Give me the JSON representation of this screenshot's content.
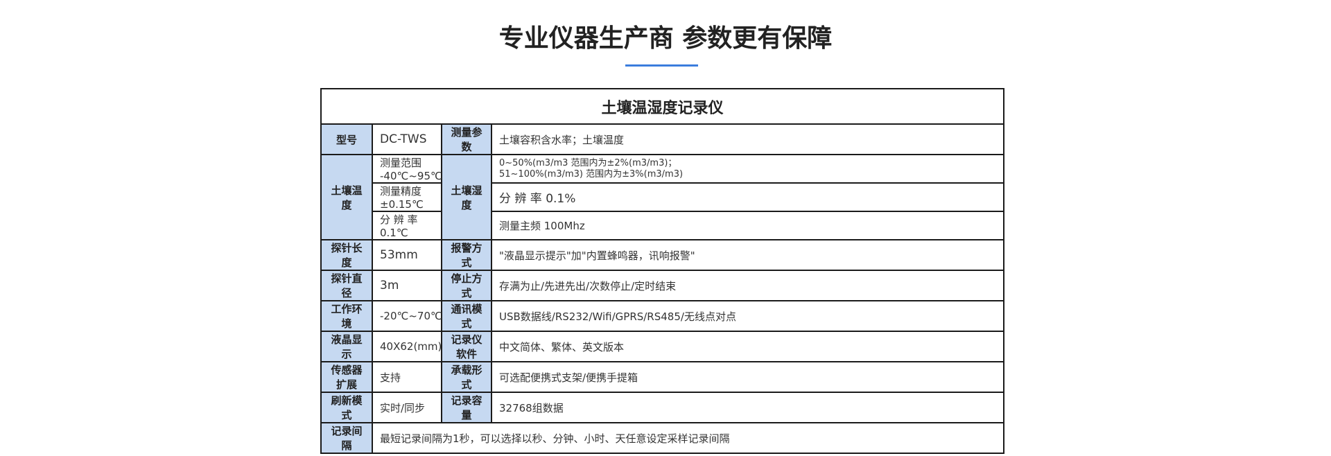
{
  "heading": "专业仪器生产商 参数更有保障",
  "accent_color": "#3b7ddd",
  "table": {
    "caption": "土壤温湿度记录仪",
    "model_label": "型号",
    "model": "DC-TWS",
    "measure_label": "测量参数",
    "measure": "土壤容积含水率；土壤温度",
    "soil_temp_label": "土壤温度",
    "soil_temp": [
      "测量范围 -40℃~95℃",
      "测量精度 ±0.15℃",
      "分 辨 率 0.1℃"
    ],
    "soil_hum_label": "土壤湿度",
    "soil_hum_line1": "0~50%(m3/m3 范围内为±2%(m3/m3)；",
    "soil_hum_line2": "51~100%(m3/m3) 范围内为±3%(m3/m3)",
    "soil_hum_res": "分 辨 率  0.1%",
    "soil_hum_freq": "测量主频 100Mhz",
    "rows": [
      {
        "l1": "探针长度",
        "v1": "53mm",
        "l2": "报警方式",
        "v2": "\"液晶显示提示\"加\"内置蜂鸣器，讯响报警\""
      },
      {
        "l1": "探针直径",
        "v1": "3m",
        "l2": "停止方式",
        "v2": "存满为止/先进先出/次数停止/定时结束"
      },
      {
        "l1": "工作环境",
        "v1": "-20℃~70℃",
        "l2": "通讯模式",
        "v2": "USB数据线/RS232/Wifi/GPRS/RS485/无线点对点"
      },
      {
        "l1": "液晶显示",
        "v1": "40X62(mm)",
        "l2": "记录仪软件",
        "v2": "中文简体、繁体、英文版本"
      },
      {
        "l1": "传感器扩展",
        "v1": "支持",
        "l2": "承载形式",
        "v2": "可选配便携式支架/便携手提箱"
      },
      {
        "l1": "刷新模式",
        "v1": "实时/同步",
        "l2": "记录容量",
        "v2": "32768组数据"
      }
    ],
    "interval_label": "记录间隔",
    "interval": "最短记录间隔为1秒，可以选择以秒、分钟、小时、天任意设定采样记录间隔"
  }
}
